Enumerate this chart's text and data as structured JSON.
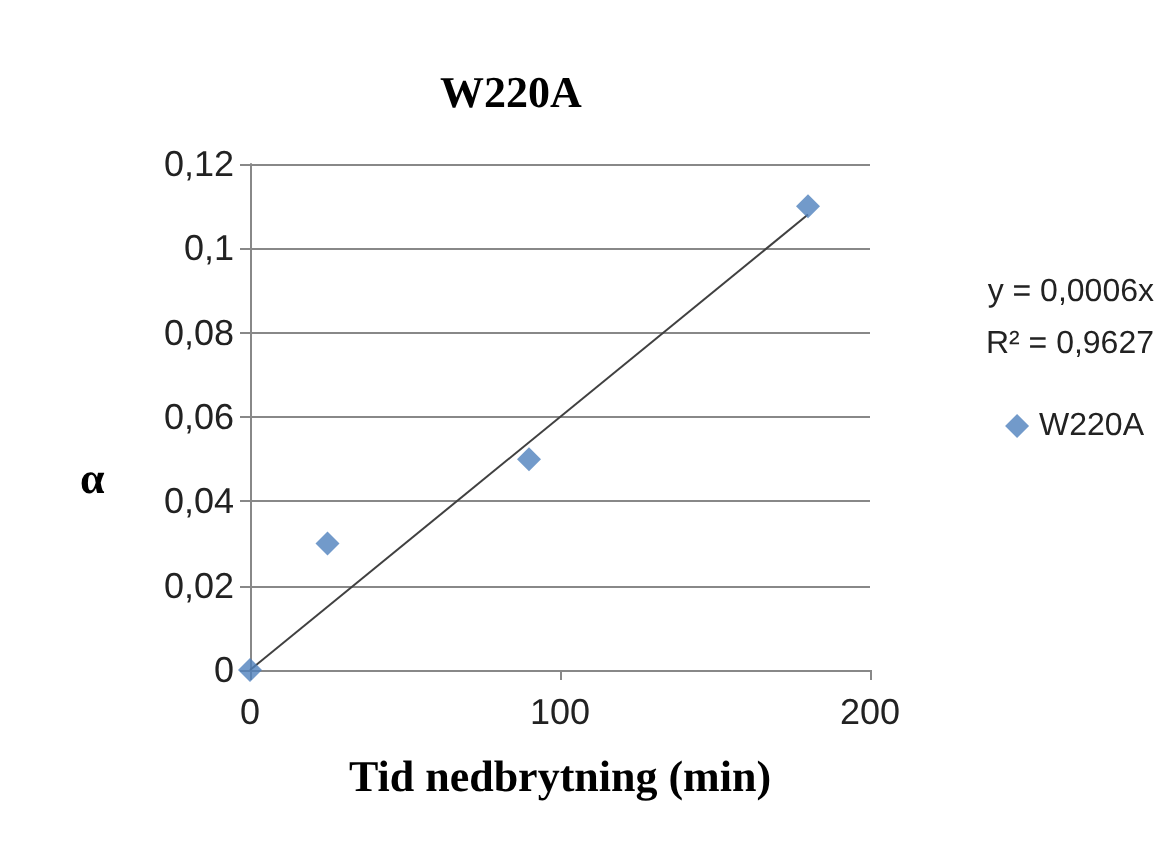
{
  "chart_data": {
    "type": "scatter",
    "title": "W220A",
    "xlabel": "Tid nedbrytning (min)",
    "ylabel": "α",
    "series": [
      {
        "name": "W220A",
        "color": "#4f81bd",
        "x": [
          0,
          25,
          90,
          180
        ],
        "values": [
          0,
          0.03,
          0.05,
          0.11
        ],
        "marker": "diamond"
      },
      {
        "type": "line",
        "color": "#404040",
        "x": [
          0,
          180
        ],
        "values": [
          0,
          0.108
        ],
        "marker": "none"
      }
    ],
    "xlim": [
      0,
      200
    ],
    "xticks": [
      0,
      100,
      200
    ],
    "ylim": [
      0,
      0.12
    ],
    "yticks": [
      0,
      {
        "value": 0.02,
        "label": "0,02"
      },
      {
        "value": 0.04,
        "label": "0,04"
      },
      {
        "value": 0.06,
        "label": "0,06"
      },
      {
        "value": 0.08,
        "label": "0,08"
      },
      {
        "value": 0.1,
        "label": "0,1"
      },
      {
        "value": 0.12,
        "label": "0,12"
      }
    ],
    "grid": "y",
    "legend": "right",
    "annotations": [
      "y = 0,0006x",
      "R² = 0,9627"
    ]
  }
}
